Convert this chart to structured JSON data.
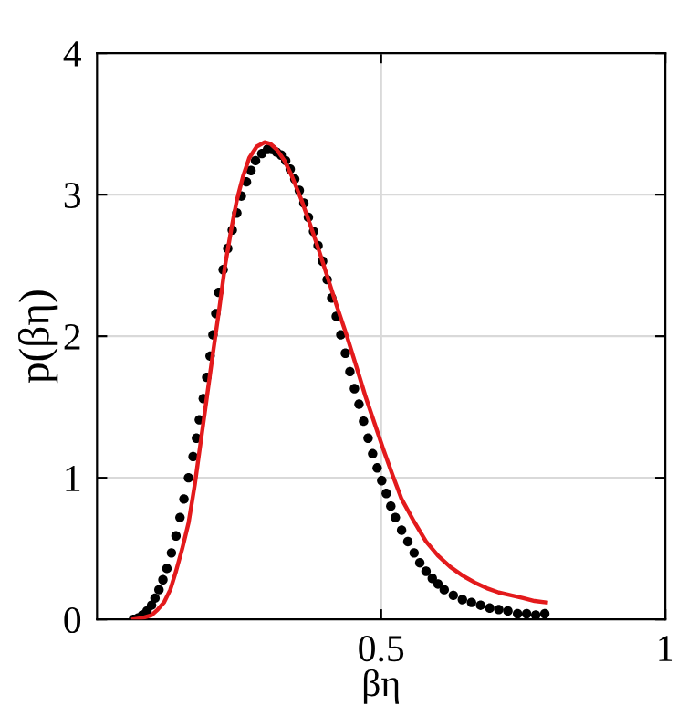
{
  "chart_data": {
    "type": "scatter",
    "xlabel": "βη",
    "ylabel": "p(βη)",
    "xlim": [
      0,
      1
    ],
    "ylim": [
      0,
      4
    ],
    "xticks": [
      0.5,
      1
    ],
    "yticks": [
      0,
      1,
      2,
      3,
      4
    ],
    "grid": true,
    "series": [
      {
        "marker": "circle",
        "color": "#000000",
        "x": [
          0.064,
          0.072,
          0.08,
          0.088,
          0.096,
          0.102,
          0.109,
          0.116,
          0.123,
          0.131,
          0.139,
          0.146,
          0.153,
          0.161,
          0.169,
          0.175,
          0.18,
          0.187,
          0.193,
          0.199,
          0.204,
          0.209,
          0.214,
          0.222,
          0.23,
          0.238,
          0.246,
          0.254,
          0.263,
          0.271,
          0.279,
          0.29,
          0.3,
          0.308,
          0.316,
          0.324,
          0.332,
          0.34,
          0.348,
          0.356,
          0.364,
          0.372,
          0.381,
          0.389,
          0.397,
          0.405,
          0.413,
          0.421,
          0.429,
          0.437,
          0.445,
          0.453,
          0.461,
          0.469,
          0.477,
          0.485,
          0.493,
          0.501,
          0.509,
          0.517,
          0.525,
          0.536,
          0.547,
          0.558,
          0.568,
          0.579,
          0.59,
          0.6,
          0.611,
          0.627,
          0.643,
          0.659,
          0.675,
          0.691,
          0.707,
          0.723,
          0.74,
          0.756,
          0.772,
          0.788
        ],
        "values": [
          0.0,
          0.01,
          0.03,
          0.06,
          0.1,
          0.15,
          0.21,
          0.28,
          0.36,
          0.47,
          0.59,
          0.72,
          0.85,
          1.0,
          1.15,
          1.28,
          1.41,
          1.56,
          1.71,
          1.86,
          2.01,
          2.16,
          2.31,
          2.47,
          2.62,
          2.75,
          2.87,
          2.99,
          3.09,
          3.17,
          3.24,
          3.29,
          3.32,
          3.32,
          3.3,
          3.28,
          3.24,
          3.18,
          3.11,
          3.03,
          2.94,
          2.84,
          2.74,
          2.64,
          2.53,
          2.4,
          2.27,
          2.14,
          2.01,
          1.88,
          1.75,
          1.63,
          1.52,
          1.4,
          1.28,
          1.17,
          1.07,
          0.98,
          0.89,
          0.8,
          0.72,
          0.63,
          0.55,
          0.47,
          0.4,
          0.34,
          0.29,
          0.25,
          0.21,
          0.17,
          0.14,
          0.12,
          0.1,
          0.08,
          0.07,
          0.06,
          0.04,
          0.04,
          0.03,
          0.04
        ]
      },
      {
        "type": "line",
        "marker": "none",
        "color": "#e31a1c",
        "x": [
          0.064,
          0.08,
          0.096,
          0.107,
          0.118,
          0.129,
          0.139,
          0.15,
          0.161,
          0.172,
          0.182,
          0.193,
          0.204,
          0.215,
          0.225,
          0.236,
          0.246,
          0.257,
          0.268,
          0.281,
          0.295,
          0.305,
          0.316,
          0.33,
          0.343,
          0.359,
          0.375,
          0.391,
          0.407,
          0.423,
          0.439,
          0.456,
          0.472,
          0.488,
          0.504,
          0.52,
          0.536,
          0.558,
          0.579,
          0.6,
          0.622,
          0.643,
          0.665,
          0.686,
          0.707,
          0.729,
          0.75,
          0.77,
          0.79
        ],
        "values": [
          0.0,
          0.01,
          0.03,
          0.07,
          0.12,
          0.21,
          0.34,
          0.5,
          0.68,
          0.95,
          1.24,
          1.56,
          1.88,
          2.19,
          2.49,
          2.75,
          2.96,
          3.13,
          3.26,
          3.34,
          3.37,
          3.36,
          3.32,
          3.24,
          3.13,
          2.97,
          2.79,
          2.6,
          2.4,
          2.2,
          2.01,
          1.79,
          1.58,
          1.39,
          1.2,
          1.02,
          0.85,
          0.69,
          0.55,
          0.45,
          0.37,
          0.31,
          0.26,
          0.22,
          0.19,
          0.17,
          0.15,
          0.13,
          0.12
        ]
      }
    ]
  }
}
